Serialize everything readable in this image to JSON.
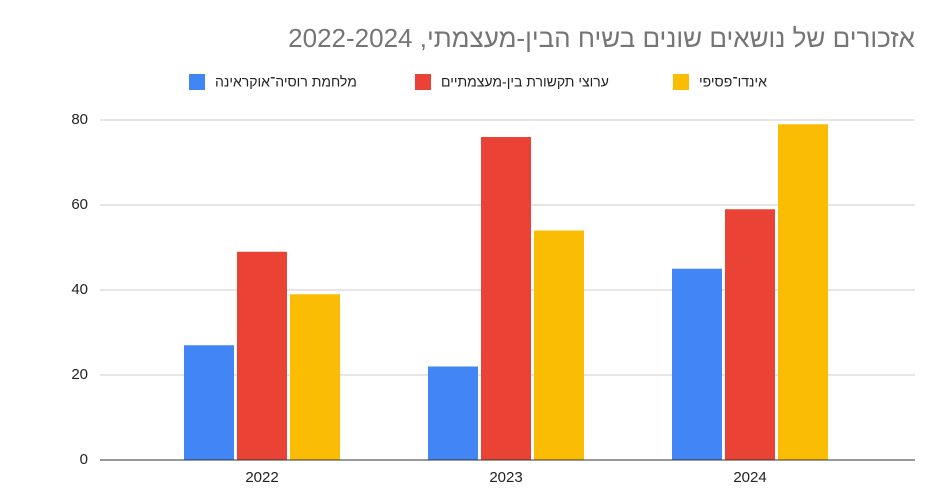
{
  "chart_data": {
    "type": "bar",
    "title": "אזכורים של נושאים שונים בשיח הבין-מעצמתי, 2022-2024",
    "categories": [
      "2022",
      "2023",
      "2024"
    ],
    "series": [
      {
        "name": "מלחמת רוסיה־אוקראינה",
        "color": "#4285f4",
        "values": [
          27,
          22,
          45
        ]
      },
      {
        "name": "ערוצי תקשורת בין-מעצמתיים",
        "color": "#ea4335",
        "values": [
          49,
          76,
          59
        ]
      },
      {
        "name": "אינדו־פסיפי",
        "color": "#fbbc04",
        "values": [
          39,
          54,
          79
        ]
      }
    ],
    "ylim": [
      0,
      80
    ],
    "yticks": [
      0,
      20,
      40,
      60,
      80
    ],
    "grid": true,
    "legend": "top"
  }
}
